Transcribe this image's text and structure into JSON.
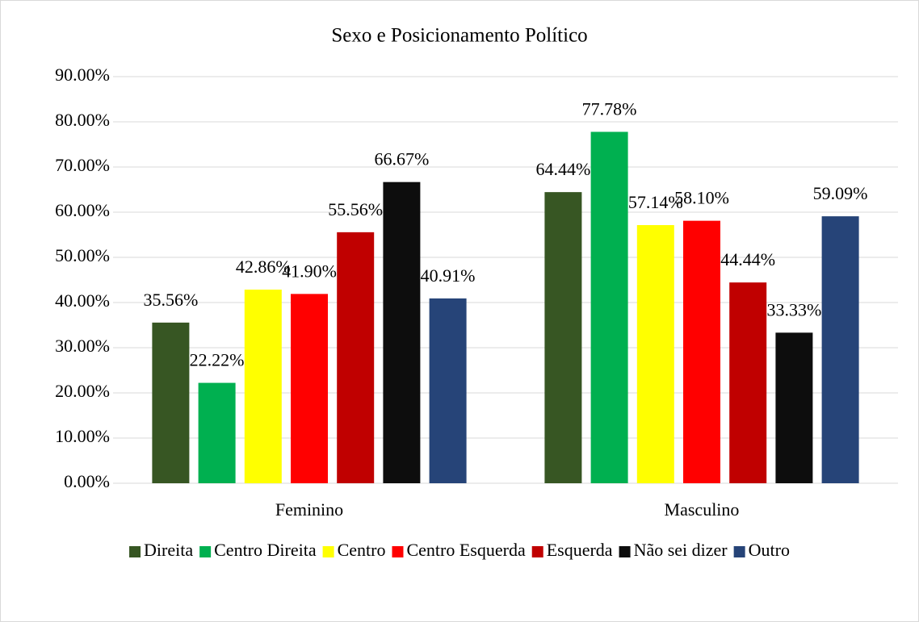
{
  "chart_data": {
    "type": "bar",
    "title": "Sexo e Posicionamento Político",
    "categories": [
      "Feminino",
      "Masculino"
    ],
    "series": [
      {
        "name": "Direita",
        "color": "#375623",
        "values": [
          35.56,
          64.44
        ],
        "value_labels": [
          "35.56%",
          "64.44%"
        ]
      },
      {
        "name": "Centro Direita",
        "color": "#00b050",
        "values": [
          22.22,
          77.78
        ],
        "value_labels": [
          "22.22%",
          "77.78%"
        ]
      },
      {
        "name": "Centro",
        "color": "#ffff00",
        "values": [
          42.86,
          57.14
        ],
        "value_labels": [
          "42.86%",
          "57.14%"
        ]
      },
      {
        "name": "Centro Esquerda",
        "color": "#ff0000",
        "values": [
          41.9,
          58.1
        ],
        "value_labels": [
          "41.90%",
          "58.10%"
        ]
      },
      {
        "name": "Esquerda",
        "color": "#c00000",
        "values": [
          55.56,
          44.44
        ],
        "value_labels": [
          "55.56%",
          "44.44%"
        ]
      },
      {
        "name": "Não sei dizer",
        "color": "#0d0d0d",
        "values": [
          66.67,
          33.33
        ],
        "value_labels": [
          "66.67%",
          "33.33%"
        ]
      },
      {
        "name": "Outro",
        "color": "#264478",
        "values": [
          40.91,
          59.09
        ],
        "value_labels": [
          "40.91%",
          "59.09%"
        ]
      }
    ],
    "ylim": [
      0,
      90
    ],
    "yticks": [
      {
        "value": 0,
        "label": "0.00%"
      },
      {
        "value": 10,
        "label": "10.00%"
      },
      {
        "value": 20,
        "label": "20.00%"
      },
      {
        "value": 30,
        "label": "30.00%"
      },
      {
        "value": 40,
        "label": "40.00%"
      },
      {
        "value": 50,
        "label": "50.00%"
      },
      {
        "value": 60,
        "label": "60.00%"
      },
      {
        "value": 70,
        "label": "70.00%"
      },
      {
        "value": 80,
        "label": "80.00%"
      },
      {
        "value": 90,
        "label": "90.00%"
      }
    ],
    "grid": true,
    "legend": "bottom"
  }
}
